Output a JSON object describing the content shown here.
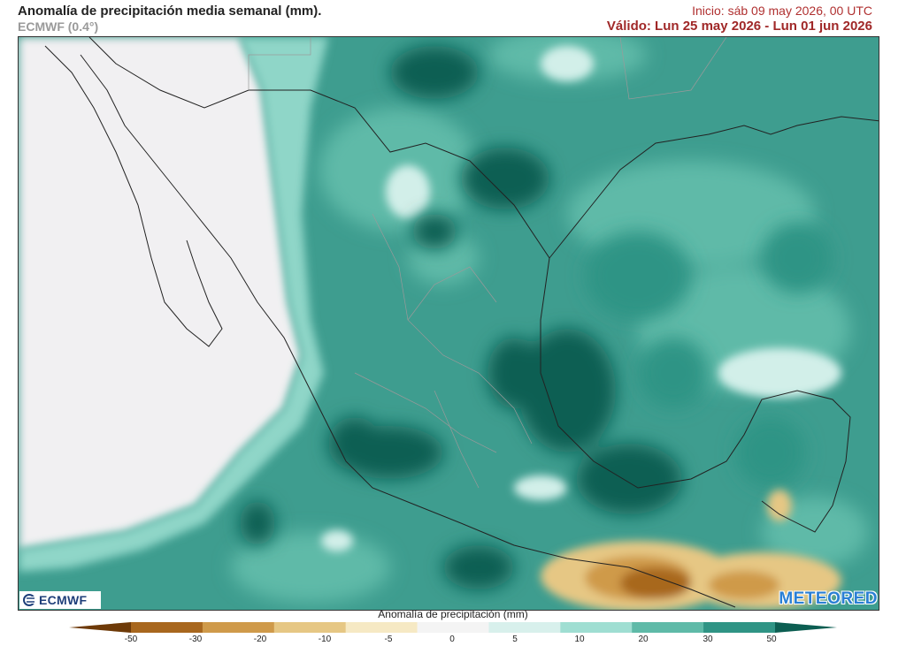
{
  "header": {
    "title": "Anomalía de precipitación media semanal (mm).",
    "model": "ECMWF (0.4°)",
    "init": "Inicio:  sáb 09 may 2026, 00 UTC",
    "valid": "Válido: Lun 25 may 2026 - Lun 01 jun 2026"
  },
  "logos": {
    "left": "ECMWF",
    "right": "METEORED"
  },
  "legend": {
    "title": "Anomalía de precipitación (mm)",
    "ticks": [
      "-50",
      "-30",
      "-20",
      "-10",
      "-5",
      "0",
      "5",
      "10",
      "20",
      "30",
      "50"
    ],
    "colors": [
      "#6e3a08",
      "#a8671e",
      "#cf9a4a",
      "#e6c784",
      "#f6e9c4",
      "#f4f4f4",
      "#d8f0ec",
      "#9fded2",
      "#5fbaa8",
      "#2f9485",
      "#0c5e52"
    ]
  },
  "map": {
    "land_color": "#f2f2f4",
    "dry_color": "#a8671e",
    "wet_color": "#0c5e52"
  }
}
